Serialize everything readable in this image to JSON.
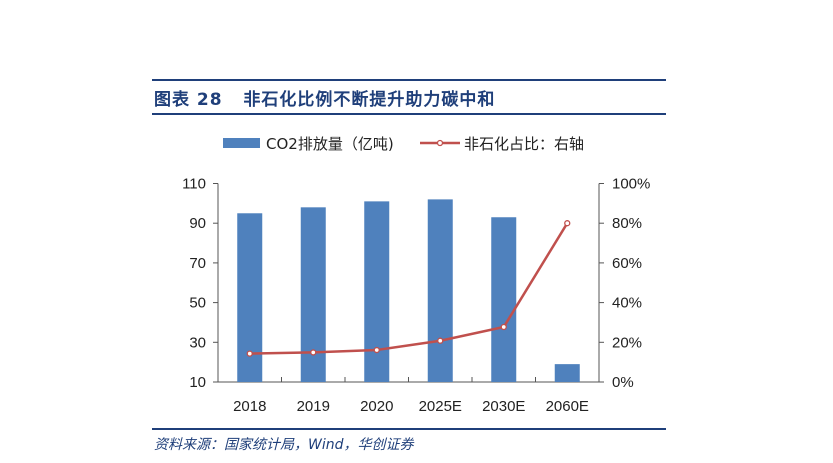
{
  "header": {
    "title": "图表 28   非石化比例不断提升助力碳中和"
  },
  "footer": {
    "source": "资料来源：国家统计局，Wind，华创证券"
  },
  "colors": {
    "bar": "#4f81bd",
    "line": "#c0504d",
    "rule": "#1f3f7a"
  },
  "chart_data": {
    "type": "bar+line",
    "categories": [
      "2018",
      "2019",
      "2020",
      "2025E",
      "2030E",
      "2060E"
    ],
    "series": [
      {
        "name": "CO2排放量（亿吨)",
        "type": "bar",
        "axis": "left",
        "values": [
          95,
          98,
          101,
          102,
          93,
          19
        ]
      },
      {
        "name": "非石化占比：右轴",
        "type": "line",
        "axis": "right",
        "values": [
          0.143,
          0.149,
          0.161,
          0.208,
          0.277,
          0.8
        ]
      }
    ],
    "y_left": {
      "range": [
        10,
        110
      ],
      "ticks": [
        "10",
        "30",
        "50",
        "70",
        "90",
        "110"
      ]
    },
    "y_right": {
      "range": [
        0,
        1
      ],
      "ticks": [
        "0%",
        "20%",
        "40%",
        "60%",
        "80%",
        "100%"
      ]
    },
    "legend": "top",
    "grid": false
  }
}
